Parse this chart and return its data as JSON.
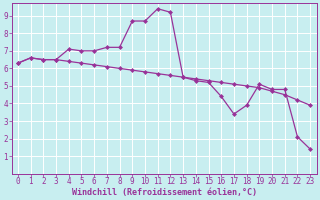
{
  "title": "",
  "xlabel": "Windchill (Refroidissement éolien,°C)",
  "ylabel": "",
  "bg_color": "#c8eef0",
  "line_color": "#993399",
  "grid_color": "#ffffff",
  "xlim": [
    -0.5,
    23.5
  ],
  "ylim": [
    0,
    9.7
  ],
  "xticks": [
    0,
    1,
    2,
    3,
    4,
    5,
    6,
    7,
    8,
    9,
    10,
    11,
    12,
    13,
    14,
    15,
    16,
    17,
    18,
    19,
    20,
    21,
    22,
    23
  ],
  "yticks": [
    1,
    2,
    3,
    4,
    5,
    6,
    7,
    8,
    9
  ],
  "series1_x": [
    0,
    1,
    2,
    3,
    4,
    5,
    6,
    7,
    8,
    9,
    10,
    11,
    12,
    13,
    14,
    15,
    16,
    17,
    18,
    19,
    20,
    21,
    22,
    23
  ],
  "series1_y": [
    6.3,
    6.6,
    6.5,
    6.5,
    6.4,
    6.3,
    6.2,
    6.1,
    6.0,
    5.9,
    5.8,
    5.7,
    5.6,
    5.5,
    5.4,
    5.3,
    5.2,
    5.1,
    5.0,
    4.9,
    4.7,
    4.5,
    4.2,
    3.9
  ],
  "series2_x": [
    0,
    1,
    2,
    3,
    4,
    5,
    6,
    7,
    8,
    9,
    10,
    11,
    12,
    13,
    14,
    15,
    16,
    17,
    18,
    19,
    20,
    21,
    22,
    23
  ],
  "series2_y": [
    6.3,
    6.6,
    6.5,
    6.5,
    7.1,
    7.0,
    7.0,
    7.2,
    7.2,
    8.7,
    8.7,
    9.4,
    9.2,
    5.5,
    5.3,
    5.2,
    4.4,
    3.4,
    3.9,
    5.1,
    4.8,
    4.8,
    2.1,
    1.4
  ],
  "marker": "D",
  "markersize": 2,
  "linewidth": 0.9,
  "xlabel_fontsize": 6,
  "tick_fontsize": 5.5,
  "spine_color": "#993399",
  "label_color": "#993399"
}
